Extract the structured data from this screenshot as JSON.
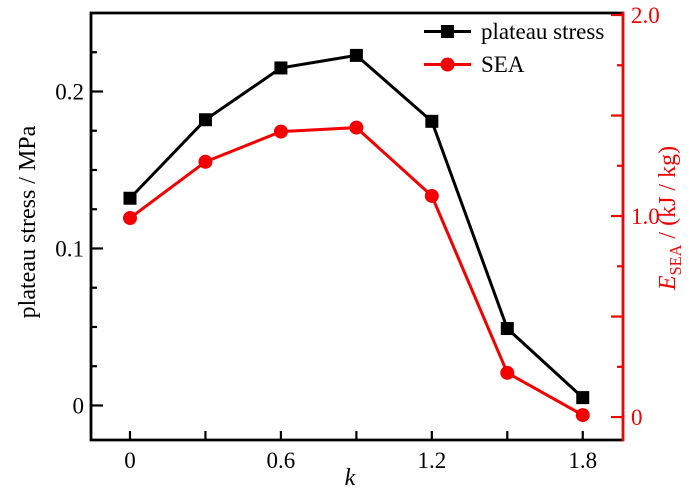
{
  "chart_data": {
    "type": "line",
    "x": [
      0,
      0.3,
      0.6,
      0.9,
      1.2,
      1.5,
      1.8
    ],
    "series": [
      {
        "name": "plateau stress",
        "axis": "left",
        "color": "#000000",
        "marker": "square",
        "values": [
          0.132,
          0.182,
          0.215,
          0.223,
          0.181,
          0.049,
          0.005
        ]
      },
      {
        "name": "SEA",
        "axis": "right",
        "color": "#f40000",
        "marker": "circle",
        "values": [
          0.99,
          1.27,
          1.42,
          1.44,
          1.1,
          0.22,
          0.01
        ]
      }
    ],
    "xlabel": "k",
    "ylabel_left": "plateau stress / MPa",
    "ylabel_right": "E_SEA / (kJ / kg)",
    "xlim": [
      -0.155,
      1.96
    ],
    "ylim_left": [
      -0.022,
      0.25
    ],
    "ylim_right": [
      -0.114,
      2.01
    ],
    "x_ticks": {
      "major": [
        0,
        0.6,
        1.2,
        1.8
      ],
      "major_labels": [
        "0",
        "0.6",
        "1.2",
        "1.8"
      ],
      "minor": [
        0.3,
        0.9,
        1.5
      ]
    },
    "left_ticks": {
      "major": [
        0,
        0.1,
        0.2
      ],
      "major_labels": [
        "0",
        "0.1",
        "0.2"
      ],
      "minor": [
        0.025,
        0.05,
        0.075,
        0.125,
        0.15,
        0.175,
        0.225
      ]
    },
    "right_ticks": {
      "labeled": [
        0,
        1,
        2
      ],
      "labels": [
        "0",
        "1.0",
        "2.0"
      ],
      "mid": [
        0.5,
        1.5
      ],
      "minor": [
        0.25,
        0.75,
        1.25,
        1.75
      ]
    },
    "grid": false,
    "legend_position": "top-right-inside"
  },
  "legend": {
    "items": [
      {
        "label": "plateau stress"
      },
      {
        "label": "SEA"
      }
    ]
  },
  "axes": {
    "left": {
      "title": "plateau stress / MPa"
    },
    "right": {
      "title_var": "E",
      "title_sub": "SEA",
      "title_rest": " / (kJ / kg)"
    },
    "x": {
      "title": "k"
    }
  },
  "colors": {
    "series_black": "#000000",
    "series_red": "#f40000",
    "background": "#ffffff"
  }
}
